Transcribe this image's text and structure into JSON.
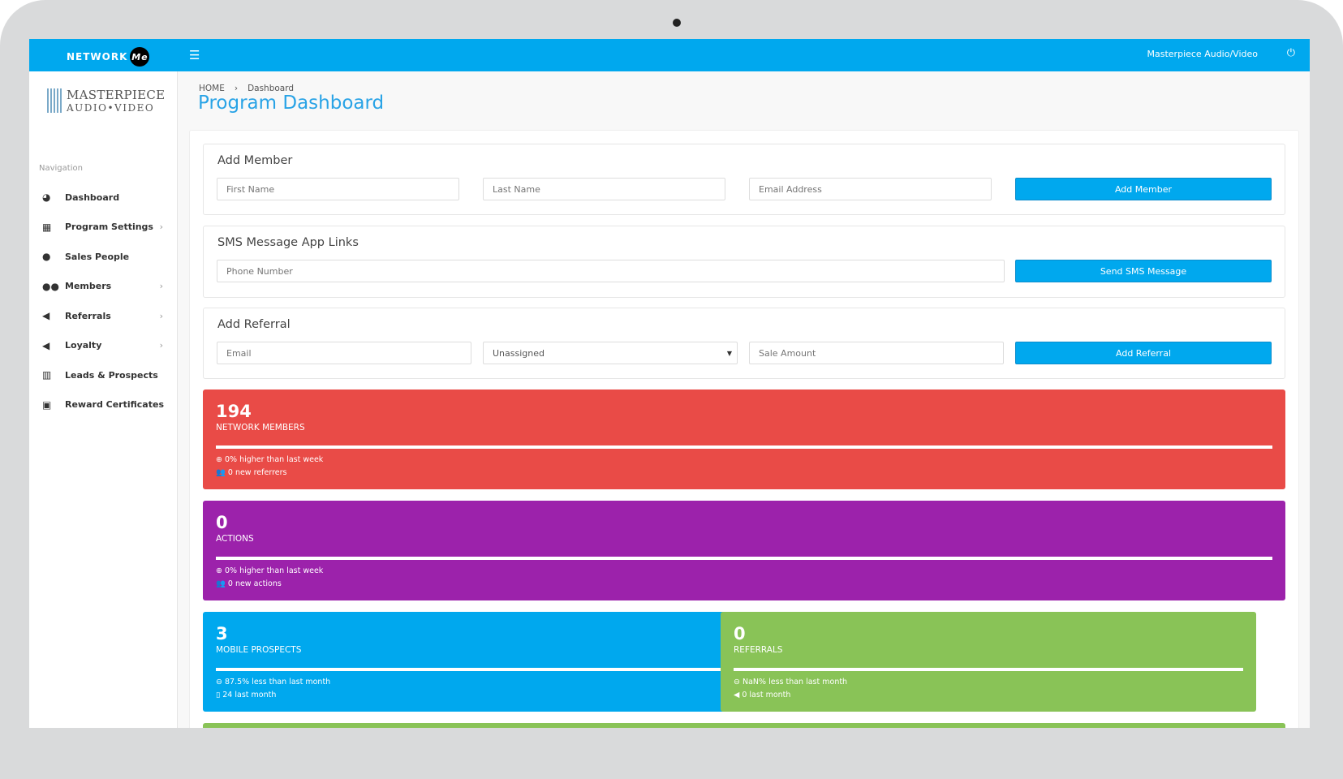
{
  "header": {
    "logo_text": "NETWORK",
    "logo_badge": "Me",
    "account": "Masterpiece Audio/Video",
    "menu_icon": "hamburger-icon",
    "power_icon": "power-icon"
  },
  "sidebar": {
    "brand_line1": "MASTERPIECE",
    "brand_line2": "AUDIO•VIDEO",
    "nav_label": "Navigation",
    "items": [
      {
        "label": "Dashboard",
        "icon": "dashboard-icon",
        "glyph": "◕",
        "chevron": false
      },
      {
        "label": "Program Settings",
        "icon": "table-icon",
        "glyph": "▦",
        "chevron": true
      },
      {
        "label": "Sales People",
        "icon": "user-icon",
        "glyph": "●",
        "chevron": false
      },
      {
        "label": "Members",
        "icon": "users-icon",
        "glyph": "●●",
        "chevron": true
      },
      {
        "label": "Referrals",
        "icon": "bullhorn-icon",
        "glyph": "◀",
        "chevron": true
      },
      {
        "label": "Loyalty",
        "icon": "bullhorn-icon",
        "glyph": "◀",
        "chevron": true
      },
      {
        "label": "Leads & Prospects",
        "icon": "bar-chart-icon",
        "glyph": "▥",
        "chevron": false
      },
      {
        "label": "Reward Certificates",
        "icon": "gift-icon",
        "glyph": "▣",
        "chevron": false
      }
    ]
  },
  "breadcrumb": {
    "home": "HOME",
    "sep": "›",
    "current": "Dashboard"
  },
  "page_title": "Program Dashboard",
  "add_member": {
    "title": "Add Member",
    "first_name_ph": "First Name",
    "last_name_ph": "Last Name",
    "email_ph": "Email Address",
    "button": "Add Member"
  },
  "sms": {
    "title": "SMS Message App Links",
    "phone_ph": "Phone Number",
    "button": "Send SMS Message"
  },
  "add_referral": {
    "title": "Add Referral",
    "email_ph": "Email",
    "salesperson_selected": "Unassigned",
    "amount_ph": "Sale Amount",
    "button": "Add Referral"
  },
  "stats": [
    {
      "value": "194",
      "label": "NETWORK MEMBERS",
      "line1": "0% higher than last week",
      "line2": "0 new referrers",
      "icon1": "arrow-circle-up-icon",
      "icon2": "users-icon",
      "color": "#e94b47"
    },
    {
      "value": "0",
      "label": "ACTIONS",
      "line1": "0% higher than last week",
      "line2": "0 new actions",
      "icon1": "arrow-circle-up-icon",
      "icon2": "users-icon",
      "color": "#9c22ab"
    },
    {
      "value": "3",
      "label": "MOBILE PROSPECTS",
      "line1": "87.5% less than last month",
      "line2": "24 last month",
      "icon1": "arrow-circle-down-icon",
      "icon2": "mobile-icon",
      "color": "#00a8ee"
    },
    {
      "value": "0",
      "label": "REFERRALS",
      "line1": "NaN% less than last month",
      "line2": "0 last month",
      "icon1": "arrow-circle-down-icon",
      "icon2": "bullhorn-icon",
      "color": "#89c357"
    }
  ]
}
